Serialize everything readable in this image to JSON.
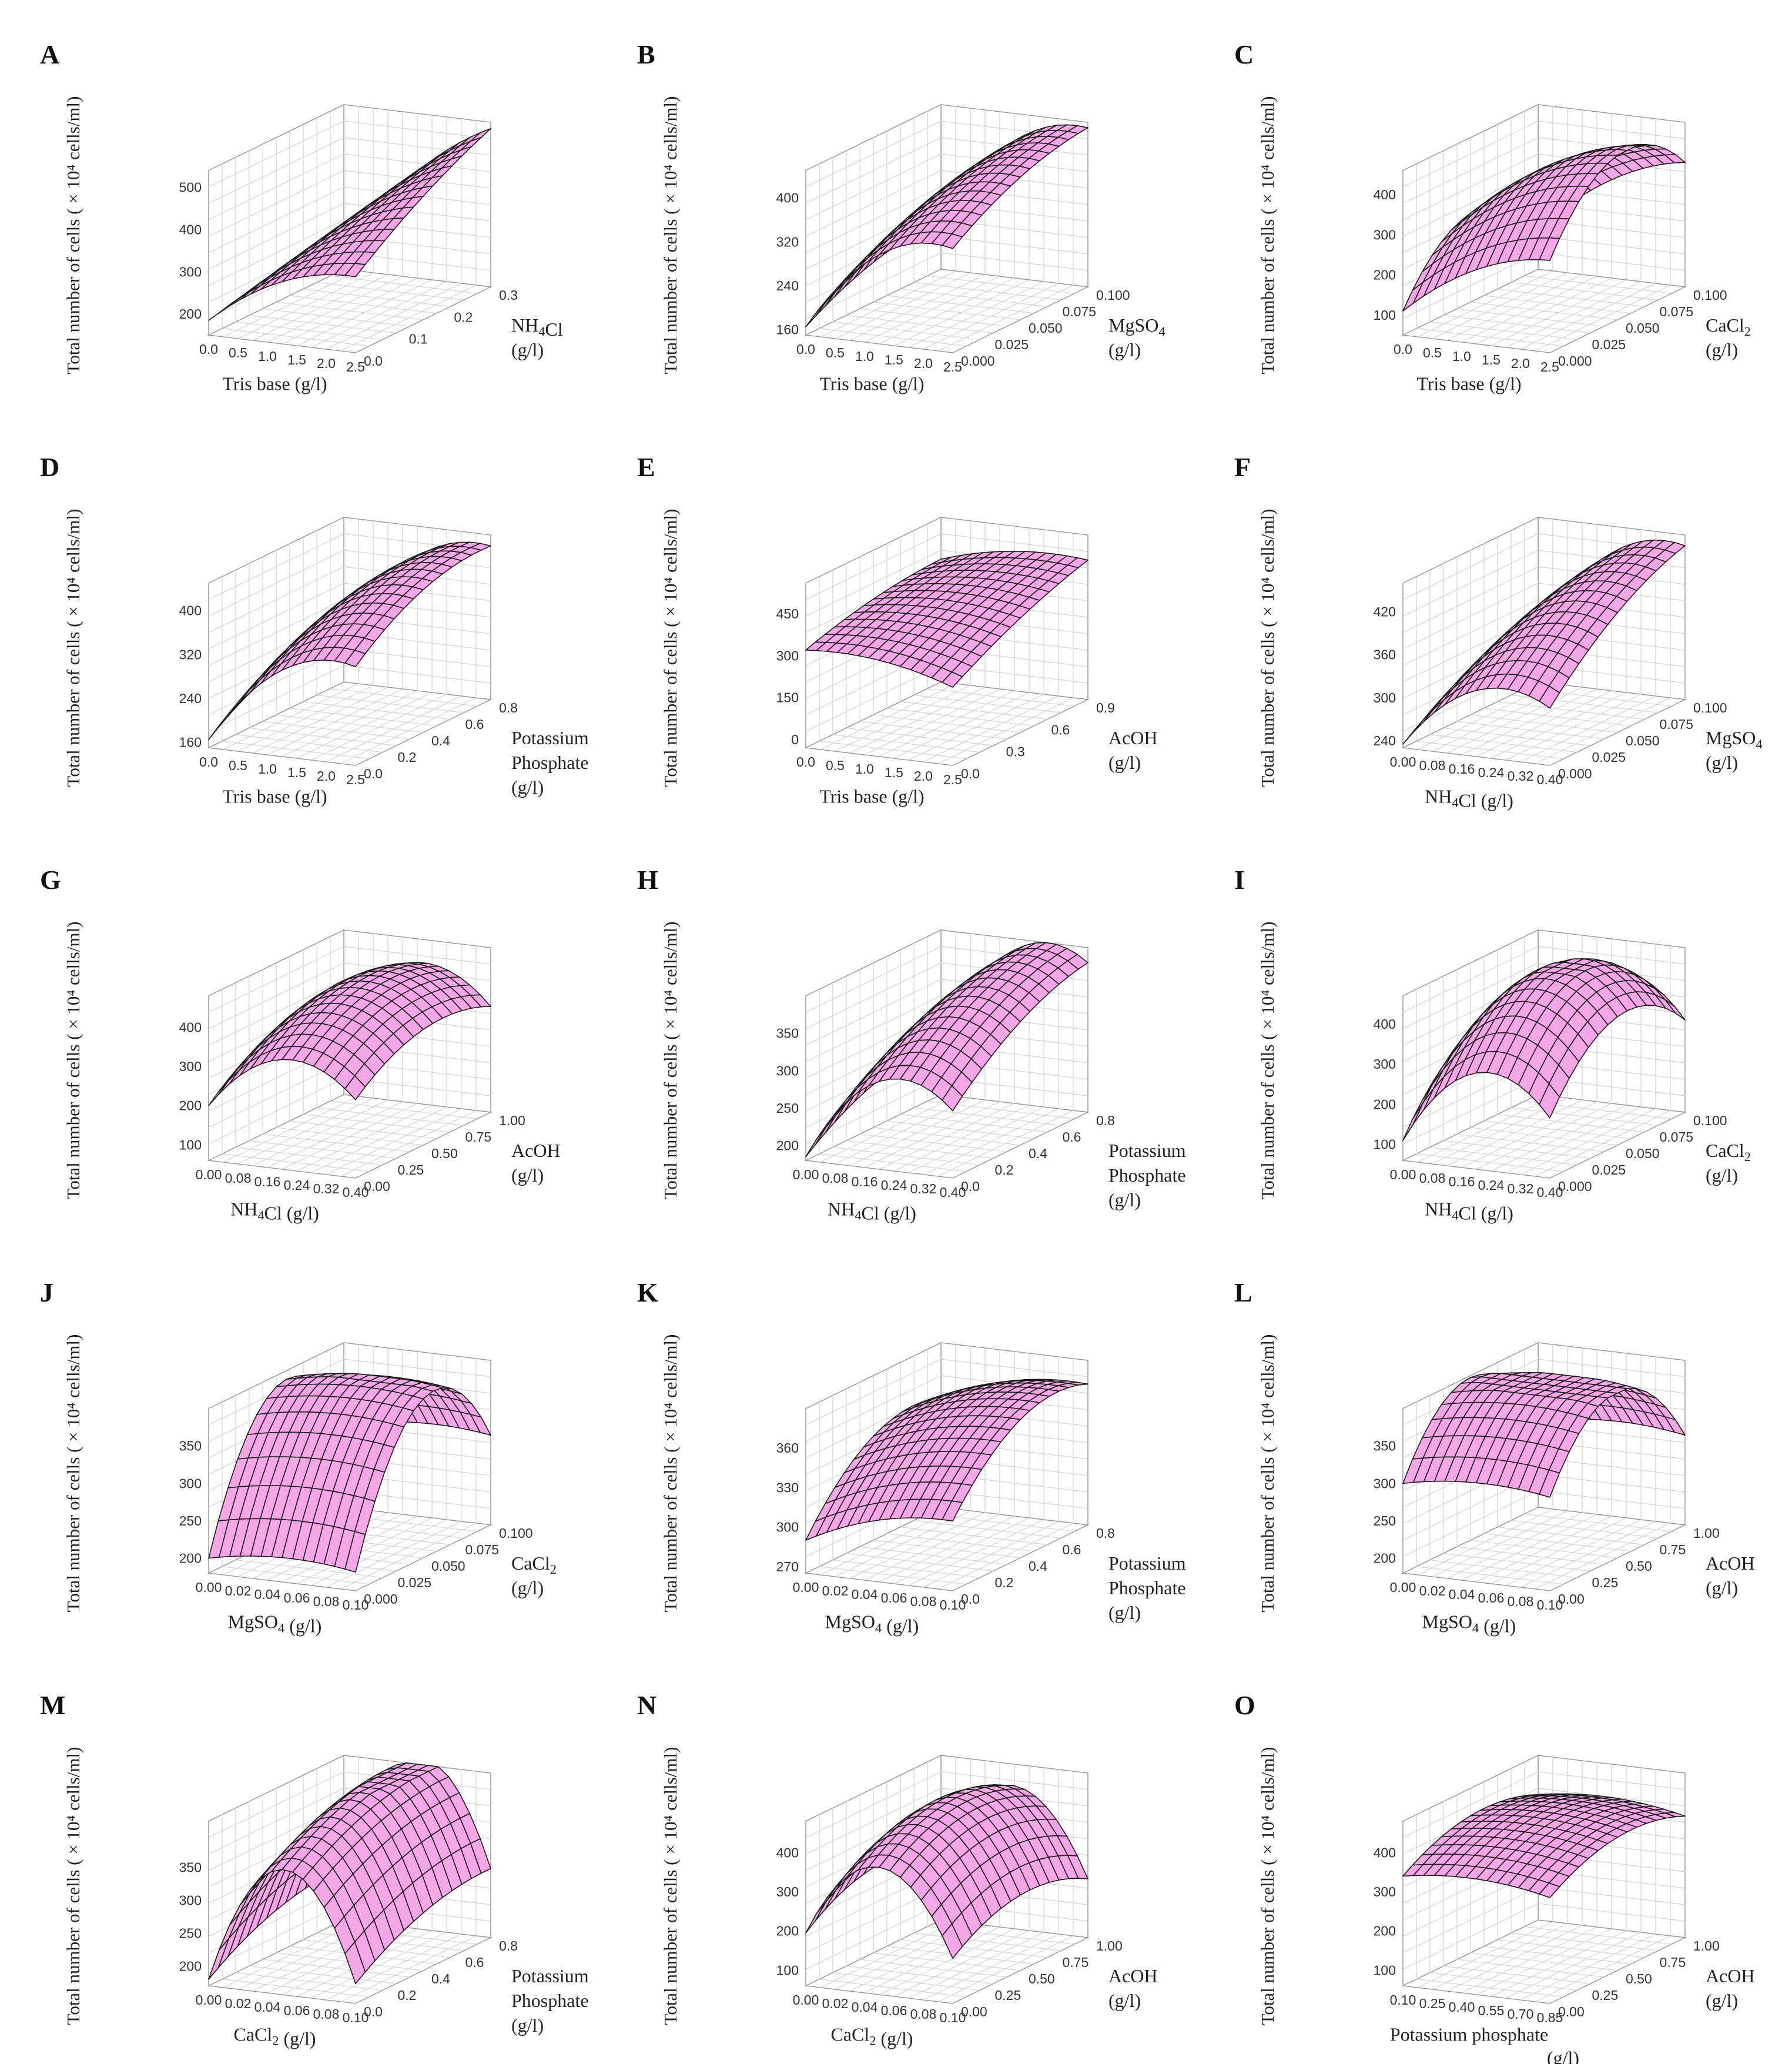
{
  "figure": {
    "title": ""
  },
  "chart_data": [
    {
      "panel": "A",
      "type": "surface3d",
      "xlabel": "Tris base (g/l)",
      "ylabel_lines": [
        "NH4Cl",
        "(g/l)"
      ],
      "zlabel": "Total number of cells ( × 10⁴ cells/ml)",
      "xticks": [
        "0.0",
        "0.5",
        "1.0",
        "1.5",
        "2.0",
        "2.5"
      ],
      "yticks": [
        "0.0",
        "0.1",
        "0.2",
        "0.3"
      ],
      "zticks": [
        "200",
        "300",
        "400",
        "500"
      ],
      "zlim": [
        150,
        540
      ],
      "surface": {
        "c00": 185,
        "c10": 330,
        "c01": 200,
        "c11": 525,
        "curv_x": 40,
        "curv_y": 15
      }
    },
    {
      "panel": "B",
      "type": "surface3d",
      "xlabel": "Tris base (g/l)",
      "ylabel_lines": [
        "MgSO4",
        "(g/l)"
      ],
      "zlabel": "Total number of cells ( × 10⁴ cells/ml)",
      "xticks": [
        "0.0",
        "0.5",
        "1.0",
        "1.5",
        "2.0",
        "2.5"
      ],
      "yticks": [
        "0.000",
        "0.025",
        "0.050",
        "0.075",
        "0.100"
      ],
      "zticks": [
        "160",
        "240",
        "320",
        "400"
      ],
      "zlim": [
        150,
        450
      ],
      "surface": {
        "c00": 165,
        "c10": 340,
        "c01": 240,
        "c11": 440,
        "curv_x": 60,
        "curv_y": 20
      }
    },
    {
      "panel": "C",
      "type": "surface3d",
      "xlabel": "Tris base (g/l)",
      "ylabel_lines": [
        "CaCl2",
        "(g/l)"
      ],
      "zlabel": "Total number of cells ( × 10⁴ cells/ml)",
      "xticks": [
        "0.0",
        "0.5",
        "1.0",
        "1.5",
        "2.0",
        "2.5"
      ],
      "yticks": [
        "0.000",
        "0.025",
        "0.050",
        "0.075",
        "0.100"
      ],
      "zticks": [
        "100",
        "200",
        "300",
        "400"
      ],
      "zlim": [
        50,
        460
      ],
      "surface": {
        "c00": 110,
        "c10": 280,
        "c01": 150,
        "c11": 360,
        "curv_x": 40,
        "curv_y": 140
      }
    },
    {
      "panel": "D",
      "type": "surface3d",
      "xlabel": "Tris base (g/l)",
      "ylabel_lines": [
        "Potassium",
        "Phosphate",
        "(g/l)"
      ],
      "zlabel": "Total number of cells ( × 10⁴ cells/ml)",
      "xticks": [
        "0.0",
        "0.5",
        "1.0",
        "1.5",
        "2.0",
        "2.5"
      ],
      "yticks": [
        "0.0",
        "0.2",
        "0.4",
        "0.6",
        "0.8"
      ],
      "zticks": [
        "160",
        "240",
        "320",
        "400"
      ],
      "zlim": [
        150,
        450
      ],
      "surface": {
        "c00": 165,
        "c10": 330,
        "c01": 240,
        "c11": 430,
        "curv_x": 60,
        "curv_y": 30
      }
    },
    {
      "panel": "E",
      "type": "surface3d",
      "xlabel": "Tris base (g/l)",
      "ylabel_lines": [
        "AcOH",
        "(g/l)"
      ],
      "zlabel": "Total number of cells ( × 10⁴ cells/ml)",
      "xticks": [
        "0.0",
        "0.5",
        "1.0",
        "1.5",
        "2.0",
        "2.5"
      ],
      "yticks": [
        "0.0",
        "0.3",
        "0.6",
        "0.9"
      ],
      "zticks": [
        "0",
        "150",
        "300",
        "450"
      ],
      "zlim": [
        -30,
        560
      ],
      "surface": {
        "c00": 320,
        "c10": 250,
        "c01": 410,
        "c11": 470,
        "curv_x": 30,
        "curv_y": 20
      }
    },
    {
      "panel": "F",
      "type": "surface3d",
      "xlabel": "NH4Cl (g/l)",
      "ylabel_lines": [
        "MgSO4",
        "(g/l)"
      ],
      "zlabel": "Total number of cells ( × 10⁴ cells/ml)",
      "xticks": [
        "0.00",
        "0.08",
        "0.16",
        "0.24",
        "0.32",
        "0.40"
      ],
      "yticks": [
        "0.000",
        "0.025",
        "0.050",
        "0.075",
        "0.100"
      ],
      "zticks": [
        "240",
        "300",
        "360",
        "420"
      ],
      "zlim": [
        230,
        460
      ],
      "surface": {
        "c00": 235,
        "c10": 310,
        "c01": 300,
        "c11": 445,
        "curv_x": 50,
        "curv_y": 20
      }
    },
    {
      "panel": "G",
      "type": "surface3d",
      "xlabel": "NH4Cl (g/l)",
      "ylabel_lines": [
        "AcOH",
        "(g/l)"
      ],
      "zlabel": "Total number of cells ( × 10⁴ cells/ml)",
      "xticks": [
        "0.00",
        "0.08",
        "0.16",
        "0.24",
        "0.32",
        "0.40"
      ],
      "yticks": [
        "0.00",
        "0.25",
        "0.50",
        "0.75",
        "1.00"
      ],
      "zticks": [
        "100",
        "200",
        "300",
        "400"
      ],
      "zlim": [
        60,
        480
      ],
      "surface": {
        "c00": 200,
        "c10": 260,
        "c01": 290,
        "c11": 330,
        "curv_x": 110,
        "curv_y": 60
      }
    },
    {
      "panel": "H",
      "type": "surface3d",
      "xlabel": "NH4Cl (g/l)",
      "ylabel_lines": [
        "Potassium",
        "Phosphate",
        "(g/l)"
      ],
      "zlabel": "Total number of cells ( × 10⁴ cells/ml)",
      "xticks": [
        "0.00",
        "0.08",
        "0.16",
        "0.24",
        "0.32",
        "0.40"
      ],
      "yticks": [
        "0.0",
        "0.2",
        "0.4",
        "0.6",
        "0.8"
      ],
      "zticks": [
        "200",
        "250",
        "300",
        "350"
      ],
      "zlim": [
        180,
        400
      ],
      "surface": {
        "c00": 185,
        "c10": 270,
        "c01": 250,
        "c11": 380,
        "curv_x": 70,
        "curv_y": 20
      }
    },
    {
      "panel": "I",
      "type": "surface3d",
      "xlabel": "NH4Cl (g/l)",
      "ylabel_lines": [
        "CaCl2",
        "(g/l)"
      ],
      "zlabel": "Total number of cells ( × 10⁴ cells/ml)",
      "xticks": [
        "0.00",
        "0.08",
        "0.16",
        "0.24",
        "0.32",
        "0.40"
      ],
      "yticks": [
        "0.000",
        "0.025",
        "0.050",
        "0.075",
        "0.100"
      ],
      "zticks": [
        "100",
        "200",
        "300",
        "400"
      ],
      "zlim": [
        60,
        470
      ],
      "surface": {
        "c00": 110,
        "c10": 210,
        "c01": 200,
        "c11": 290,
        "curv_x": 140,
        "curv_y": 130
      }
    },
    {
      "panel": "J",
      "type": "surface3d",
      "xlabel": "MgSO4 (g/l)",
      "ylabel_lines": [
        "CaCl2",
        "(g/l)"
      ],
      "zlabel": "Total number of cells ( × 10⁴ cells/ml)",
      "xticks": [
        "0.00",
        "0.02",
        "0.04",
        "0.06",
        "0.08",
        "0.10"
      ],
      "yticks": [
        "0.000",
        "0.025",
        "0.050",
        "0.075",
        "0.100"
      ],
      "zticks": [
        "200",
        "250",
        "300",
        "350"
      ],
      "zlim": [
        180,
        400
      ],
      "surface": {
        "c00": 200,
        "c10": 205,
        "c01": 290,
        "c11": 300,
        "curv_x": 10,
        "curv_y": 140
      }
    },
    {
      "panel": "K",
      "type": "surface3d",
      "xlabel": "MgSO4 (g/l)",
      "ylabel_lines": [
        "Potassium",
        "Phosphate",
        "(g/l)"
      ],
      "zlabel": "Total number of cells ( × 10⁴ cells/ml)",
      "xticks": [
        "0.00",
        "0.02",
        "0.04",
        "0.06",
        "0.08",
        "0.10"
      ],
      "yticks": [
        "0.0",
        "0.2",
        "0.4",
        "0.6",
        "0.8"
      ],
      "zticks": [
        "270",
        "300",
        "330",
        "360"
      ],
      "zlim": [
        265,
        390
      ],
      "surface": {
        "c00": 290,
        "c10": 318,
        "c01": 348,
        "c11": 372,
        "curv_x": 8,
        "curv_y": 25
      }
    },
    {
      "panel": "L",
      "type": "surface3d",
      "xlabel": "MgSO4 (g/l)",
      "ylabel_lines": [
        "AcOH",
        "(g/l)"
      ],
      "zlabel": "Total number of cells ( × 10⁴ cells/ml)",
      "xticks": [
        "0.00",
        "0.02",
        "0.04",
        "0.06",
        "0.08",
        "0.10"
      ],
      "yticks": [
        "0.00",
        "0.25",
        "0.50",
        "0.75",
        "1.00"
      ],
      "zticks": [
        "200",
        "250",
        "300",
        "350"
      ],
      "zlim": [
        180,
        400
      ],
      "surface": {
        "c00": 300,
        "c10": 305,
        "c01": 295,
        "c11": 300,
        "curv_x": 10,
        "curv_y": 100
      }
    },
    {
      "panel": "M",
      "type": "surface3d",
      "xlabel": "CaCl2 (g/l)",
      "ylabel_lines": [
        "Potassium",
        "Phosphate",
        "(g/l)"
      ],
      "zlabel": "Total number of cells ( × 10⁴ cells/ml)",
      "xticks": [
        "0.00",
        "0.02",
        "0.04",
        "0.06",
        "0.08",
        "0.10"
      ],
      "yticks": [
        "0.0",
        "0.2",
        "0.4",
        "0.6",
        "0.8"
      ],
      "zticks": [
        "200",
        "250",
        "300",
        "350"
      ],
      "zlim": [
        170,
        420
      ],
      "surface": {
        "c00": 180,
        "c10": 200,
        "c01": 250,
        "c11": 275,
        "curv_x": 170,
        "curv_y": 20
      }
    },
    {
      "panel": "N",
      "type": "surface3d",
      "xlabel": "CaCl2 (g/l)",
      "ylabel_lines": [
        "AcOH",
        "(g/l)"
      ],
      "zlabel": "Total number of cells ( × 10⁴ cells/ml)",
      "xticks": [
        "0.00",
        "0.02",
        "0.04",
        "0.06",
        "0.08",
        "0.10"
      ],
      "yticks": [
        "0.00",
        "0.25",
        "0.50",
        "0.75",
        "1.00"
      ],
      "zticks": [
        "100",
        "200",
        "300",
        "400"
      ],
      "zlim": [
        60,
        480
      ],
      "surface": {
        "c00": 195,
        "c10": 175,
        "c01": 240,
        "c11": 210,
        "curv_x": 200,
        "curv_y": 60
      }
    },
    {
      "panel": "O",
      "type": "surface3d",
      "xlabel": "Potassium phosphate",
      "xlabel_sub": "(g/l)",
      "ylabel_lines": [
        "AcOH",
        "(g/l)"
      ],
      "zlabel": "Total number of cells ( × 10⁴ cells/ml)",
      "xticks": [
        "0.10",
        "0.25",
        "0.40",
        "0.55",
        "0.70",
        "0.85"
      ],
      "yticks": [
        "0.00",
        "0.25",
        "0.50",
        "0.75",
        "1.00"
      ],
      "zticks": [
        "100",
        "200",
        "300",
        "400"
      ],
      "zlim": [
        60,
        480
      ],
      "surface": {
        "c00": 340,
        "c10": 330,
        "c01": 380,
        "c11": 370,
        "curv_x": 20,
        "curv_y": 50
      }
    }
  ],
  "style": {
    "surface_fill": "#f5a6e6",
    "surface_edge": "#1a1a1a",
    "grid": "#d2d2d2",
    "frame": "#9a9a9a"
  }
}
